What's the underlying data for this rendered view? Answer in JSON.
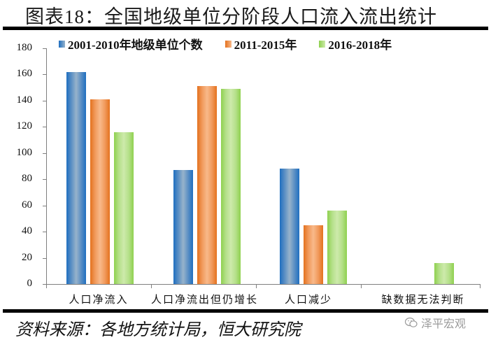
{
  "header": {
    "title": "图表18：全国地级单位分阶段人口流入流出统计"
  },
  "footer": {
    "source": "资料来源：各地方统计局，恒大研究院",
    "watermark": "泽平宏观"
  },
  "colors": {
    "series1": "#1f6fc0",
    "series2": "#e4711e",
    "series3": "#8fd14f"
  },
  "chart_data": {
    "type": "bar",
    "title": "图表18：全国地级单位分阶段人口流入流出统计",
    "xlabel": "",
    "ylabel": "",
    "ylim": [
      0,
      180
    ],
    "yticks": [
      0,
      20,
      40,
      60,
      80,
      100,
      120,
      140,
      160,
      180
    ],
    "grid": false,
    "legend_position": "top",
    "categories": [
      "人口净流入",
      "人口净流出但仍增长",
      "人口减少",
      "缺数据无法判断"
    ],
    "series": [
      {
        "name": "2001-2010年地级单位个数",
        "values": [
          162,
          87,
          88,
          0
        ]
      },
      {
        "name": "2011-2015年",
        "values": [
          141,
          151,
          45,
          0
        ]
      },
      {
        "name": "2016-2018年",
        "values": [
          116,
          149,
          56,
          16
        ]
      }
    ]
  },
  "legend": {
    "items": [
      {
        "label": "2001-2010年地级单位个数"
      },
      {
        "label": "2011-2015年"
      },
      {
        "label": "2016-2018年"
      }
    ]
  },
  "yaxis": {
    "labels": [
      "180",
      "160",
      "140",
      "120",
      "100",
      "80",
      "60",
      "40",
      "20",
      "0"
    ]
  },
  "xaxis": {
    "labels": [
      "人口净流入",
      "人口净流出但仍增长",
      "人口减少",
      "缺数据无法判断"
    ]
  }
}
